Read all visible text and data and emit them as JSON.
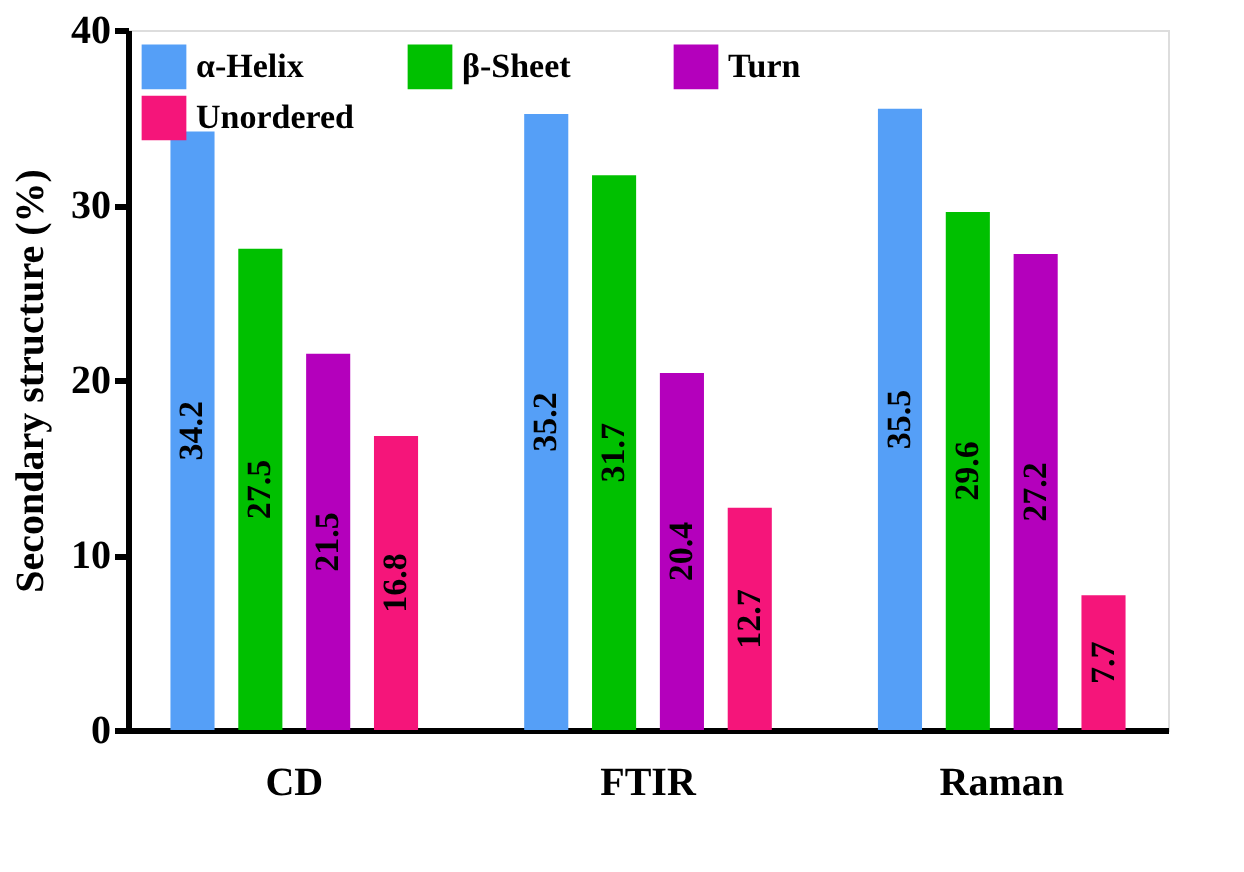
{
  "chart_data": {
    "type": "bar",
    "ylabel": "Secondary structure (%)",
    "categories": [
      "CD",
      "FTIR",
      "Raman"
    ],
    "series": [
      {
        "name": "α-Helix",
        "color": "#559ff7",
        "values": [
          34.2,
          35.2,
          35.5
        ]
      },
      {
        "name": "β-Sheet",
        "color": "#00c000",
        "values": [
          27.5,
          31.7,
          29.6
        ]
      },
      {
        "name": "Turn",
        "color": "#b400bc",
        "values": [
          21.5,
          20.4,
          27.2
        ]
      },
      {
        "name": "Unordered",
        "color": "#f5157a",
        "values": [
          16.8,
          12.7,
          7.7
        ]
      }
    ],
    "ylim": [
      0,
      40
    ],
    "yticks": [
      0,
      10,
      20,
      30,
      40
    ],
    "data_labels": true,
    "grid": false,
    "legend": "top left"
  }
}
